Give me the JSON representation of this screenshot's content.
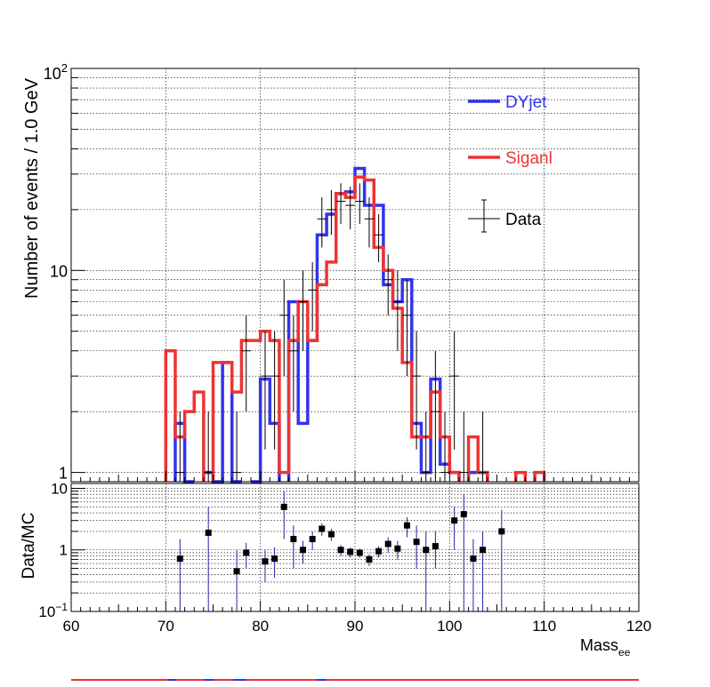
{
  "chart_data": [
    {
      "type": "step-histogram",
      "panel": "main",
      "ylabel": "Number of events / 1.0 GeV",
      "xlim": [
        60,
        120
      ],
      "ylim": [
        0.9,
        100
      ],
      "yscale": "log",
      "grid": true,
      "yticks": [
        {
          "value": 1,
          "label": "1"
        },
        {
          "value": 10,
          "label": "10"
        },
        {
          "value": 100,
          "label": "10",
          "sup": "2"
        }
      ],
      "legend_position": "top-right",
      "legend": [
        {
          "name": "DYjet",
          "style": "line",
          "color": "#3333ee"
        },
        {
          "name": "Siganl",
          "style": "line",
          "color": "#ee3333"
        },
        {
          "name": "Data",
          "style": "errorbar",
          "color": "#000000"
        }
      ],
      "series": [
        {
          "name": "DYjet",
          "color": "#3333ee",
          "bins": [
            [
              71,
              1.75
            ],
            [
              72,
              0.5
            ],
            [
              74,
              1
            ],
            [
              75,
              0.5
            ],
            [
              76,
              3.5
            ],
            [
              77,
              0.5
            ],
            [
              79,
              0.5
            ],
            [
              80,
              2.9
            ],
            [
              81,
              1.75
            ],
            [
              83,
              7
            ],
            [
              84,
              1.75
            ],
            [
              85,
              4.5
            ],
            [
              86,
              15
            ],
            [
              87,
              19
            ],
            [
              88,
              24
            ],
            [
              89,
              24.5
            ],
            [
              90,
              32
            ],
            [
              91,
              21
            ],
            [
              92,
              21
            ],
            [
              93,
              8.5
            ],
            [
              94,
              7
            ],
            [
              95,
              9
            ],
            [
              96,
              1.75
            ],
            [
              97,
              1
            ],
            [
              98,
              2.9
            ],
            [
              99,
              1.1
            ],
            [
              100,
              1
            ],
            [
              102,
              1
            ],
            [
              103,
              1
            ]
          ]
        },
        {
          "name": "Siganl",
          "color": "#ee3333",
          "bins": [
            [
              70,
              4
            ],
            [
              71,
              1.5
            ],
            [
              72,
              2
            ],
            [
              73,
              2.5
            ],
            [
              75,
              3.5
            ],
            [
              76,
              3.5
            ],
            [
              77,
              2.5
            ],
            [
              78,
              4.5
            ],
            [
              79,
              4.5
            ],
            [
              80,
              5
            ],
            [
              81,
              4.5
            ],
            [
              82,
              1
            ],
            [
              83,
              4.5
            ],
            [
              84,
              7
            ],
            [
              85,
              4.5
            ],
            [
              86,
              8.5
            ],
            [
              87,
              11
            ],
            [
              88,
              24
            ],
            [
              89,
              23
            ],
            [
              90,
              29
            ],
            [
              91,
              28
            ],
            [
              92,
              13
            ],
            [
              93,
              10
            ],
            [
              94,
              6.5
            ],
            [
              95,
              3.5
            ],
            [
              96,
              1.5
            ],
            [
              97,
              1.5
            ],
            [
              98,
              2.5
            ],
            [
              99,
              1.5
            ],
            [
              100,
              1
            ],
            [
              102,
              1.5
            ],
            [
              103,
              1
            ],
            [
              107,
              1
            ],
            [
              109,
              1
            ]
          ]
        }
      ],
      "data_points": {
        "name": "Data",
        "points": [
          [
            71.5,
            1,
            0.8,
            2
          ],
          [
            74.5,
            1,
            0.8,
            2
          ],
          [
            77.5,
            1,
            0.8,
            2
          ],
          [
            78.5,
            4,
            2,
            6
          ],
          [
            80.5,
            3,
            1.3,
            5
          ],
          [
            81.5,
            3,
            1.3,
            5
          ],
          [
            82.5,
            6,
            3,
            9
          ],
          [
            83.5,
            4,
            2,
            6
          ],
          [
            84.5,
            7,
            4,
            10
          ],
          [
            85.5,
            8,
            5,
            11
          ],
          [
            86.5,
            18,
            13,
            23
          ],
          [
            87.5,
            20,
            15,
            25
          ],
          [
            88.5,
            22,
            17,
            27
          ],
          [
            89.5,
            21,
            16,
            26
          ],
          [
            90.5,
            22,
            17,
            27
          ],
          [
            91.5,
            18,
            13,
            23
          ],
          [
            92.5,
            15,
            11,
            19
          ],
          [
            93.5,
            9,
            6,
            12
          ],
          [
            94.5,
            7,
            4,
            10
          ],
          [
            95.5,
            6,
            3,
            9
          ],
          [
            96.5,
            3,
            1.3,
            5
          ],
          [
            97.5,
            1,
            0.8,
            2
          ],
          [
            98.5,
            2,
            0.8,
            4
          ],
          [
            99.5,
            1,
            0.8,
            2
          ],
          [
            100.5,
            3,
            1.3,
            5
          ],
          [
            101.5,
            1,
            0.8,
            2
          ],
          [
            103.5,
            1,
            0.8,
            2
          ]
        ]
      }
    },
    {
      "type": "scatter-errorbar",
      "panel": "ratio",
      "ylabel": "Data/MC",
      "xlabel": "Mass",
      "xlabel_sub": "ee",
      "xlim": [
        60,
        120
      ],
      "ylim": [
        0.1,
        12
      ],
      "yscale": "log",
      "grid": true,
      "xticks": [
        60,
        70,
        80,
        90,
        100,
        110,
        120
      ],
      "yticks": [
        {
          "value": 0.1,
          "label": "10",
          "sup": "−1"
        },
        {
          "value": 1,
          "label": "1"
        },
        {
          "value": 10,
          "label": "10"
        }
      ],
      "points": [
        [
          71.5,
          0.72,
          0.1,
          1.5
        ],
        [
          74.5,
          1.9,
          0.1,
          5
        ],
        [
          77.5,
          0.45,
          0.1,
          1
        ],
        [
          78.5,
          0.9,
          0.5,
          1.3
        ],
        [
          80.5,
          0.65,
          0.3,
          1
        ],
        [
          81.5,
          0.72,
          0.35,
          1.1
        ],
        [
          82.5,
          5,
          1.5,
          9
        ],
        [
          83.5,
          1.5,
          0.5,
          2.5
        ],
        [
          84.5,
          1,
          0.6,
          1.4
        ],
        [
          85.5,
          1.5,
          1,
          2
        ],
        [
          86.5,
          2.2,
          1.7,
          2.7
        ],
        [
          87.5,
          1.8,
          1.4,
          2.2
        ],
        [
          88.5,
          1,
          0.8,
          1.2
        ],
        [
          89.5,
          0.93,
          0.75,
          1.1
        ],
        [
          90.5,
          0.9,
          0.75,
          1.05
        ],
        [
          91.5,
          0.7,
          0.55,
          0.85
        ],
        [
          92.5,
          0.95,
          0.75,
          1.15
        ],
        [
          93.5,
          1.25,
          0.9,
          1.6
        ],
        [
          94.5,
          1.05,
          0.7,
          1.4
        ],
        [
          95.5,
          2.5,
          1.6,
          3.4
        ],
        [
          96.5,
          1.35,
          0.5,
          2.5
        ],
        [
          97.5,
          1,
          0.1,
          2
        ],
        [
          98.5,
          1.15,
          0.5,
          2
        ],
        [
          100.5,
          3,
          1,
          5
        ],
        [
          101.5,
          3.8,
          0.1,
          8
        ],
        [
          102.5,
          0.72,
          0.1,
          1.5
        ],
        [
          103.5,
          1,
          0.1,
          2
        ],
        [
          105.5,
          2,
          0.1,
          4.5
        ]
      ]
    }
  ]
}
